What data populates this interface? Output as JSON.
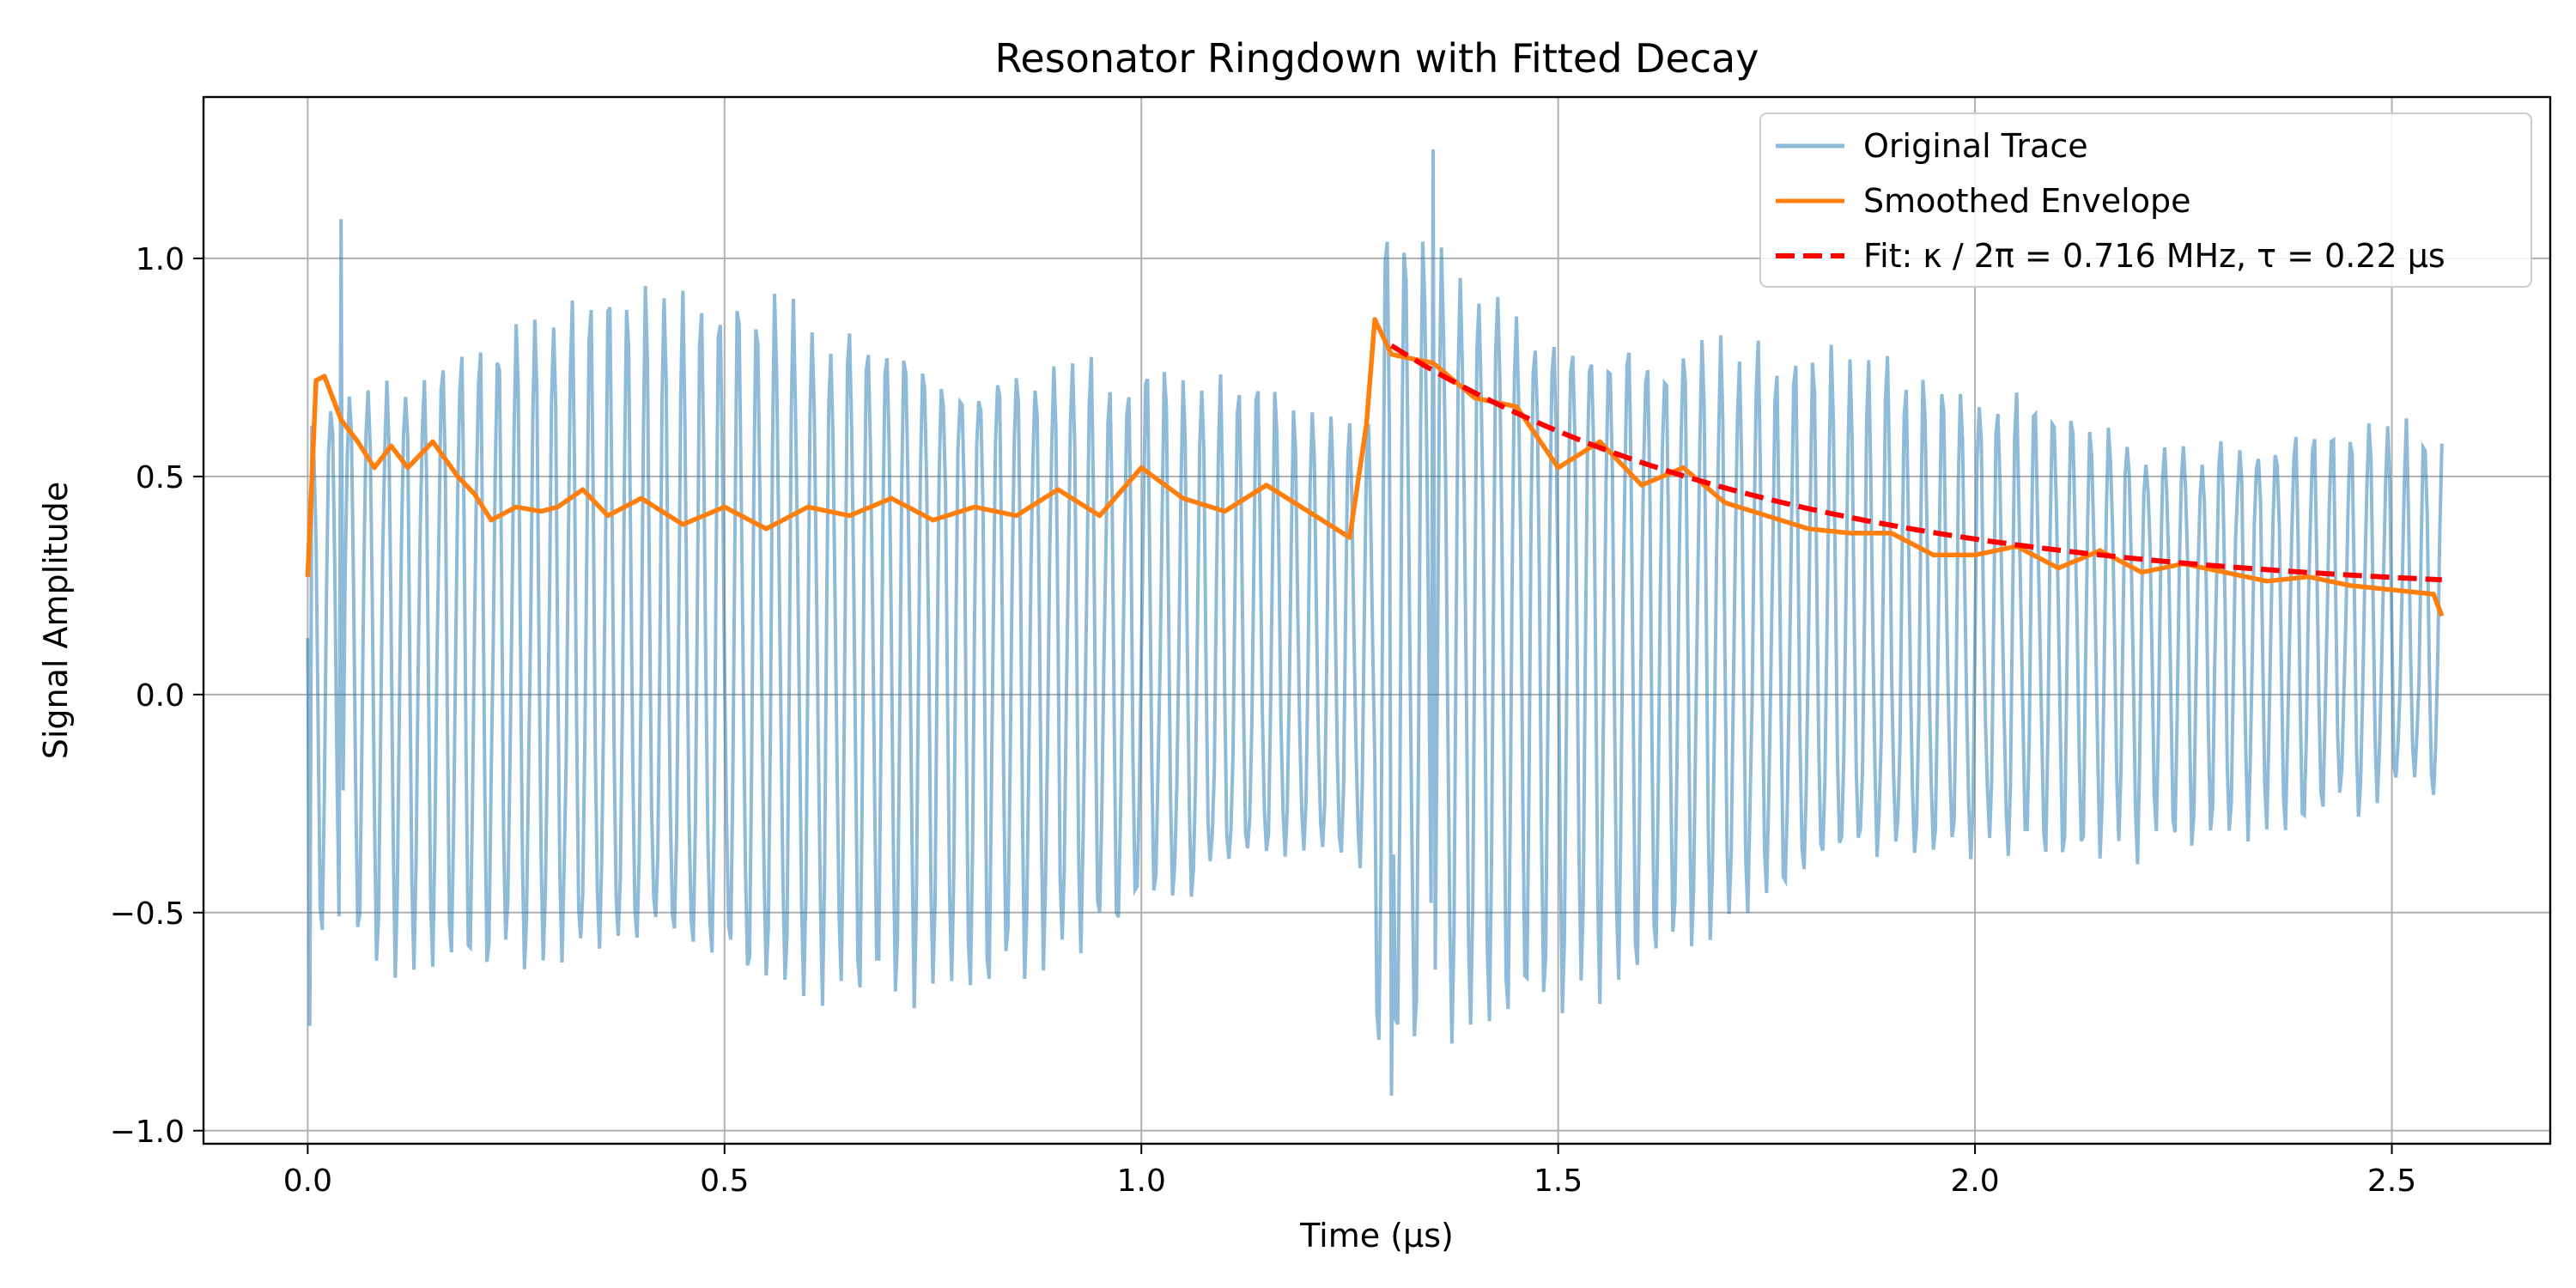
{
  "chart_data": {
    "type": "line",
    "title": "Resonator Ringdown with Fitted Decay",
    "xlabel": "Time (µs)",
    "ylabel": "Signal Amplitude",
    "xlim": [
      -0.125,
      2.69
    ],
    "ylim": [
      -1.03,
      1.37
    ],
    "xticks": [
      0.0,
      0.5,
      1.0,
      1.5,
      2.0,
      2.5
    ],
    "xtick_labels": [
      "0.0",
      "0.5",
      "1.0",
      "1.5",
      "2.0",
      "2.5"
    ],
    "yticks": [
      -1.0,
      -0.5,
      0.0,
      0.5,
      1.0
    ],
    "ytick_labels": [
      "−1.0",
      "−0.5",
      "0.0",
      "0.5",
      "1.0"
    ],
    "grid": true,
    "legend_position": "top-right",
    "series": [
      {
        "name": "Original Trace",
        "color": "#1f77b4",
        "style": "solid",
        "alpha": 0.5,
        "description_points": {
          "t_start": 0.0,
          "t_end": 2.56,
          "segment1": {
            "t": [
              0.0,
              1.28
            ],
            "peak_max": 1.09,
            "trough_min": -0.76,
            "typical_peak": 0.8,
            "typical_trough": -0.55
          },
          "segment2": {
            "t": [
              1.28,
              2.56
            ],
            "peak_start": 1.25,
            "peak_end": 0.5,
            "trough_start": -0.92,
            "trough_end": -0.18
          }
        }
      },
      {
        "name": "Smoothed Envelope",
        "color": "#ff7f0e",
        "style": "solid",
        "x": [
          0.0,
          0.01,
          0.02,
          0.04,
          0.06,
          0.08,
          0.1,
          0.12,
          0.15,
          0.18,
          0.2,
          0.22,
          0.25,
          0.28,
          0.3,
          0.33,
          0.36,
          0.4,
          0.45,
          0.5,
          0.55,
          0.6,
          0.65,
          0.7,
          0.75,
          0.8,
          0.85,
          0.9,
          0.95,
          1.0,
          1.05,
          1.1,
          1.15,
          1.2,
          1.25,
          1.27,
          1.28,
          1.3,
          1.35,
          1.4,
          1.45,
          1.5,
          1.55,
          1.6,
          1.65,
          1.7,
          1.75,
          1.8,
          1.85,
          1.9,
          1.95,
          2.0,
          2.05,
          2.1,
          2.15,
          2.2,
          2.25,
          2.3,
          2.35,
          2.4,
          2.45,
          2.5,
          2.55,
          2.56
        ],
        "y": [
          0.27,
          0.72,
          0.73,
          0.63,
          0.58,
          0.52,
          0.57,
          0.52,
          0.58,
          0.5,
          0.46,
          0.4,
          0.43,
          0.42,
          0.43,
          0.47,
          0.41,
          0.45,
          0.39,
          0.43,
          0.38,
          0.43,
          0.41,
          0.45,
          0.4,
          0.43,
          0.41,
          0.47,
          0.41,
          0.52,
          0.45,
          0.42,
          0.48,
          0.42,
          0.36,
          0.62,
          0.86,
          0.78,
          0.76,
          0.68,
          0.66,
          0.52,
          0.58,
          0.48,
          0.52,
          0.44,
          0.41,
          0.38,
          0.37,
          0.37,
          0.32,
          0.32,
          0.34,
          0.29,
          0.33,
          0.28,
          0.3,
          0.28,
          0.26,
          0.27,
          0.25,
          0.24,
          0.23,
          0.18
        ]
      },
      {
        "name": "Fit: κ / 2π = 0.716 MHz, τ = 0.22 µs",
        "color": "#ff0000",
        "style": "dashed",
        "x_range": [
          1.3,
          2.56
        ],
        "fit_start_value": 0.8,
        "fit_tau_us": 0.22,
        "fit_offset": 0.22
      }
    ]
  }
}
